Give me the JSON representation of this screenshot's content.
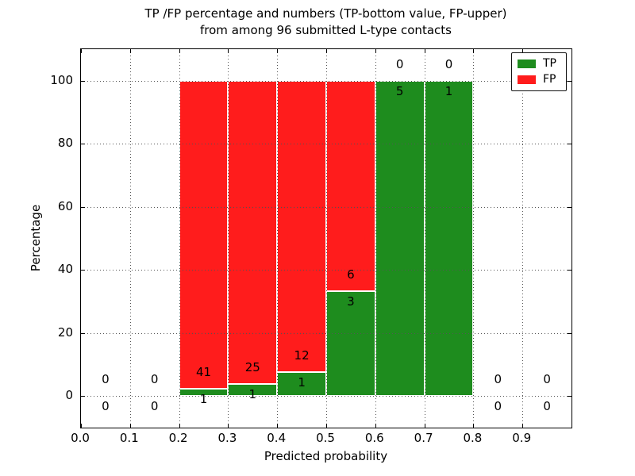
{
  "title": {
    "line1": "TP /FP percentage and numbers (TP-bottom value, FP-upper)",
    "line2": "from among 96 submitted L-type contacts"
  },
  "chart_data": {
    "type": "bar",
    "stacked": true,
    "title": "TP /FP percentage and numbers (TP-bottom value, FP-upper) from among 96 submitted L-type contacts",
    "xlabel": "Predicted probability",
    "ylabel": "Percentage",
    "xlim": [
      0.0,
      1.0
    ],
    "ylim": [
      -10,
      110
    ],
    "grid": true,
    "grid_style": "dotted",
    "x_ticks": [
      "0.0",
      "0.1",
      "0.2",
      "0.3",
      "0.4",
      "0.5",
      "0.6",
      "0.7",
      "0.8",
      "0.9"
    ],
    "y_ticks": [
      0,
      20,
      40,
      60,
      80,
      100
    ],
    "colors": {
      "tp": "#1e8c1e",
      "fp": "#ff1c1c"
    },
    "legend": {
      "position": "upper-right",
      "entries": [
        {
          "label": "TP",
          "color": "#1e8c1e"
        },
        {
          "label": "FP",
          "color": "#ff1c1c"
        }
      ]
    },
    "annotation_rule": "TP count below green/red boundary, FP count above boundary",
    "bins": [
      {
        "x_start": 0.0,
        "x_end": 0.1,
        "tp": 0,
        "fp": 0
      },
      {
        "x_start": 0.1,
        "x_end": 0.2,
        "tp": 0,
        "fp": 0
      },
      {
        "x_start": 0.2,
        "x_end": 0.3,
        "tp": 1,
        "fp": 41
      },
      {
        "x_start": 0.3,
        "x_end": 0.4,
        "tp": 1,
        "fp": 25
      },
      {
        "x_start": 0.4,
        "x_end": 0.5,
        "tp": 1,
        "fp": 12
      },
      {
        "x_start": 0.5,
        "x_end": 0.6,
        "tp": 3,
        "fp": 6
      },
      {
        "x_start": 0.6,
        "x_end": 0.7,
        "tp": 5,
        "fp": 0
      },
      {
        "x_start": 0.7,
        "x_end": 0.8,
        "tp": 1,
        "fp": 0
      },
      {
        "x_start": 0.8,
        "x_end": 0.9,
        "tp": 0,
        "fp": 0
      },
      {
        "x_start": 0.9,
        "x_end": 1.0,
        "tp": 0,
        "fp": 0
      }
    ]
  }
}
